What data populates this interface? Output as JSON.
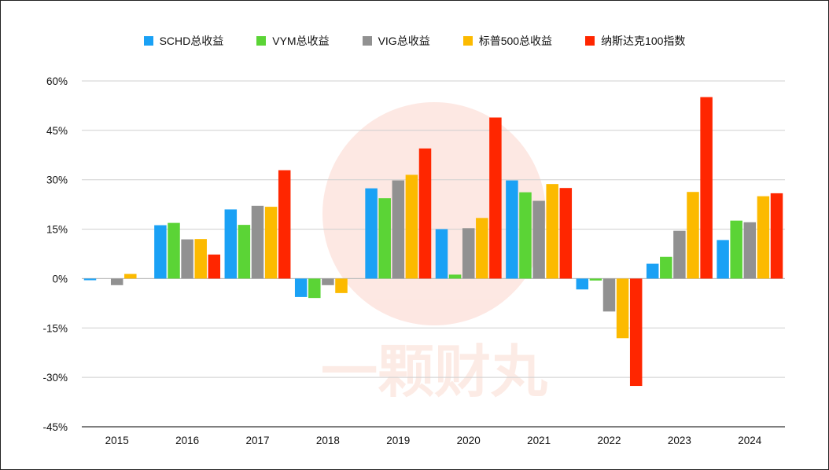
{
  "chart_data": {
    "type": "bar",
    "categories": [
      "2015",
      "2016",
      "2017",
      "2018",
      "2019",
      "2020",
      "2021",
      "2022",
      "2023",
      "2024"
    ],
    "series": [
      {
        "name": "SCHD总收益",
        "color": "#1AA1F5",
        "values": [
          -0.5,
          16.2,
          21.0,
          -5.6,
          27.4,
          15.0,
          29.8,
          -3.3,
          4.5,
          11.7
        ]
      },
      {
        "name": "VYM总收益",
        "color": "#5BD436",
        "values": [
          0,
          16.9,
          16.3,
          -5.9,
          24.4,
          1.2,
          26.2,
          -0.6,
          6.6,
          17.6
        ]
      },
      {
        "name": "VIG总收益",
        "color": "#919191",
        "values": [
          -2.0,
          11.9,
          22.1,
          -2.0,
          29.8,
          15.3,
          23.6,
          -10.0,
          14.5,
          17.1
        ]
      },
      {
        "name": "标普500总收益",
        "color": "#FCBA00",
        "values": [
          1.4,
          12.0,
          21.8,
          -4.4,
          31.5,
          18.4,
          28.7,
          -18.1,
          26.3,
          25.0
        ]
      },
      {
        "name": "纳斯达克100指数",
        "color": "#FF2600",
        "values": [
          0,
          7.3,
          32.9,
          0,
          39.5,
          48.9,
          27.5,
          -32.6,
          55.1,
          25.9
        ]
      }
    ],
    "y_ticks": [
      "60%",
      "45%",
      "30%",
      "15%",
      "0%",
      "-15%",
      "-30%",
      "-45%"
    ],
    "y_tick_values": [
      60,
      45,
      30,
      15,
      0,
      -15,
      -30,
      -45
    ],
    "ylim": [
      -45,
      60
    ],
    "grid": true,
    "legend_position": "top"
  },
  "watermark": {
    "text": "一颗财丸"
  }
}
